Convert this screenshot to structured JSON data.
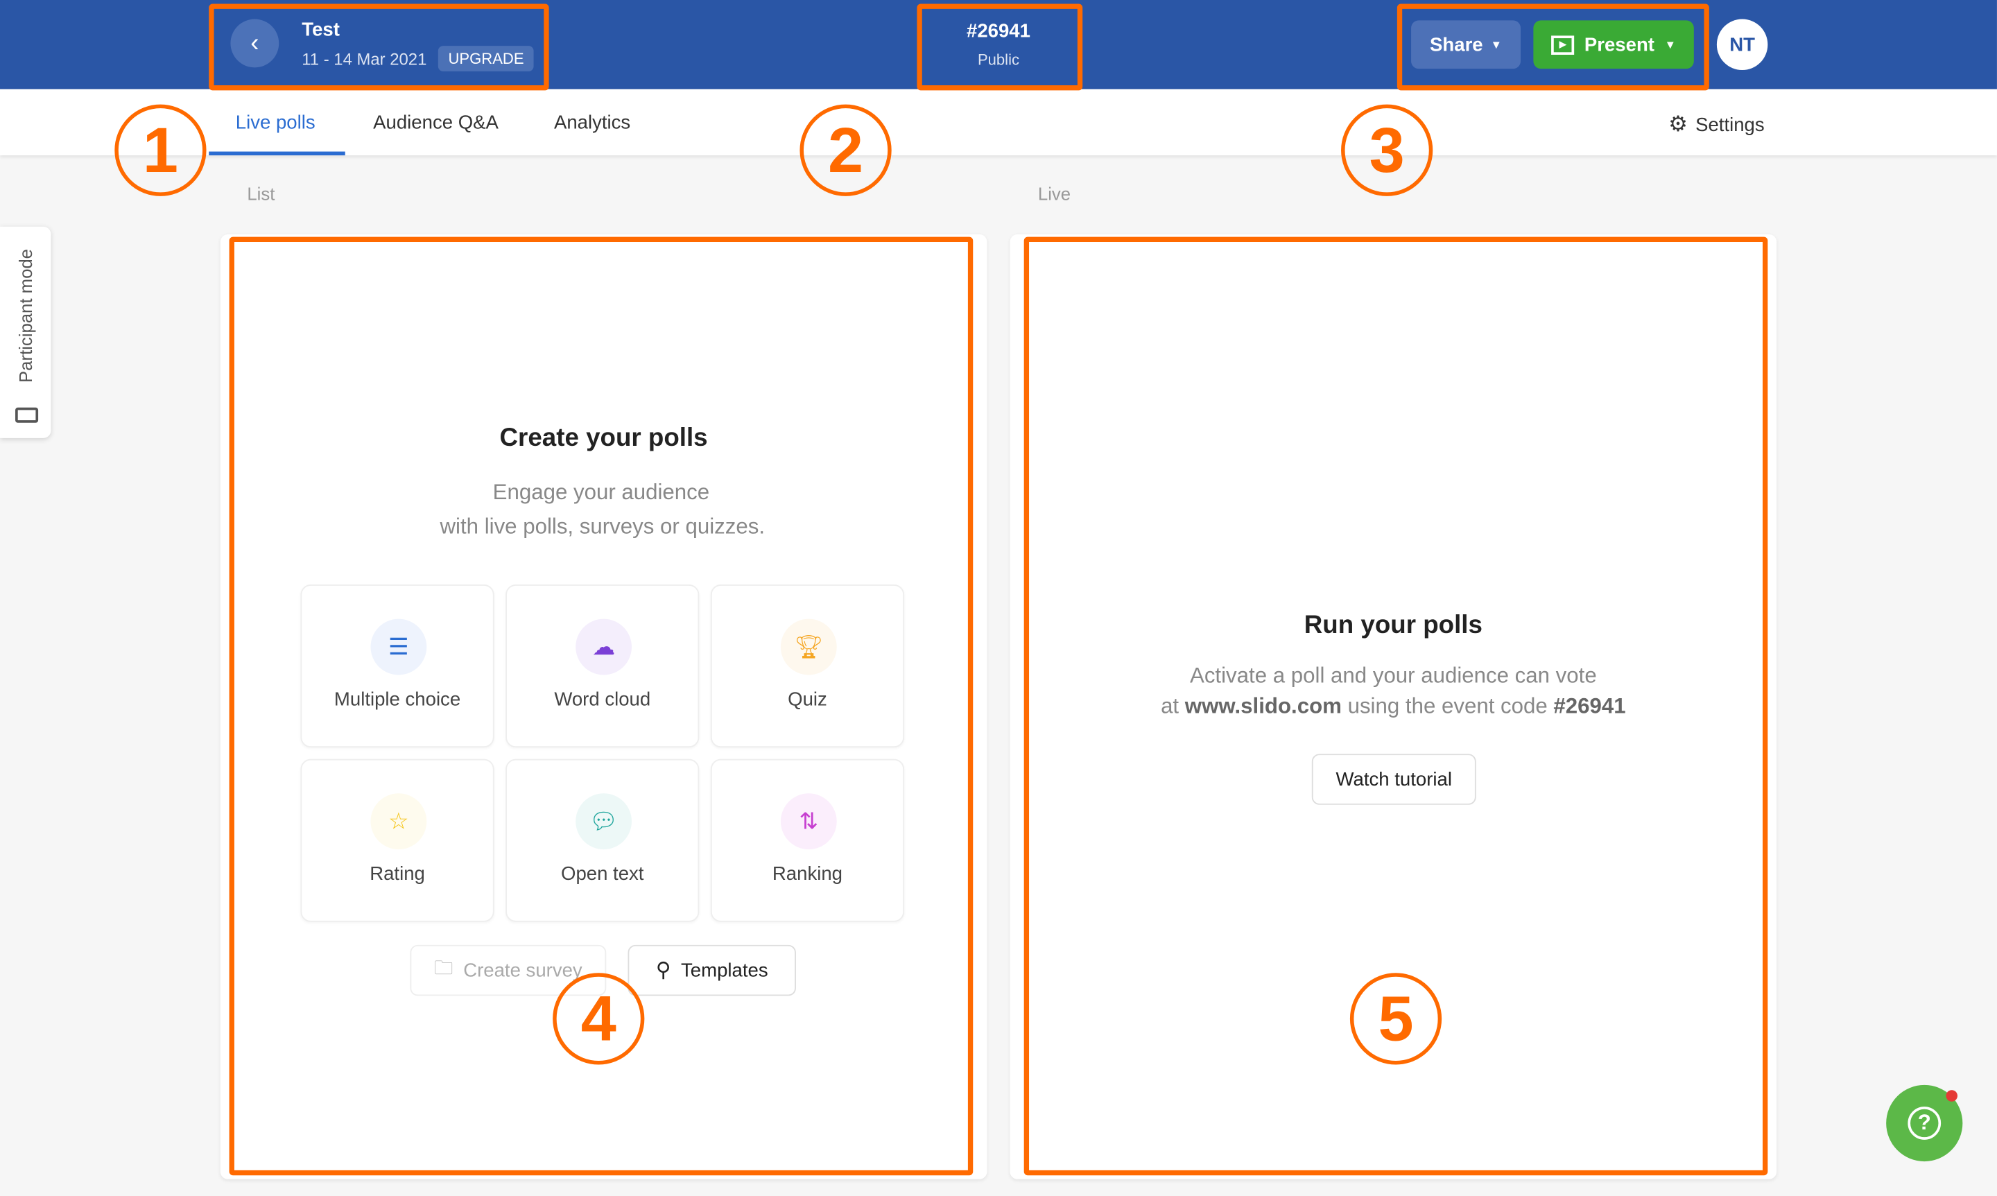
{
  "header": {
    "event_title": "Test",
    "event_dates": "11 - 14 Mar 2021",
    "upgrade_label": "UPGRADE",
    "event_code": "#26941",
    "visibility": "Public",
    "share_label": "Share",
    "present_label": "Present",
    "avatar_initials": "NT"
  },
  "tabs": [
    {
      "label": "Live polls",
      "active": true
    },
    {
      "label": "Audience Q&A"
    },
    {
      "label": "Analytics"
    }
  ],
  "settings_label": "Settings",
  "participant_mode_label": "Participant mode",
  "list": {
    "section_label": "List",
    "title": "Create your polls",
    "subtitle_line1": "Engage your audience",
    "subtitle_line2": "with live polls, surveys or quizzes.",
    "poll_types": [
      {
        "label": "Multiple choice",
        "icon": "list-icon",
        "color": "#2a6cd1"
      },
      {
        "label": "Word cloud",
        "icon": "cloud-icon",
        "color": "#7b3fd6"
      },
      {
        "label": "Quiz",
        "icon": "trophy-icon",
        "color": "#f5a623"
      },
      {
        "label": "Rating",
        "icon": "star-icon",
        "color": "#f5c518"
      },
      {
        "label": "Open text",
        "icon": "chat-icon",
        "color": "#1aa39a"
      },
      {
        "label": "Ranking",
        "icon": "sort-arrows-icon",
        "color": "#c63fd0"
      }
    ],
    "create_survey_label": "Create survey",
    "templates_label": "Templates"
  },
  "live": {
    "section_label": "Live",
    "title": "Run your polls",
    "line1": "Activate a poll and your audience can vote",
    "line2_prefix": "at ",
    "url": "www.slido.com",
    "line2_mid": " using the event code ",
    "code": "#26941",
    "watch_tutorial_label": "Watch tutorial"
  },
  "annotations": [
    "1",
    "2",
    "3",
    "4",
    "5"
  ],
  "colors": {
    "header": "#2a56a6",
    "accent": "#2a6cd1",
    "present": "#3aaa35",
    "annotation": "#ff6a00"
  }
}
